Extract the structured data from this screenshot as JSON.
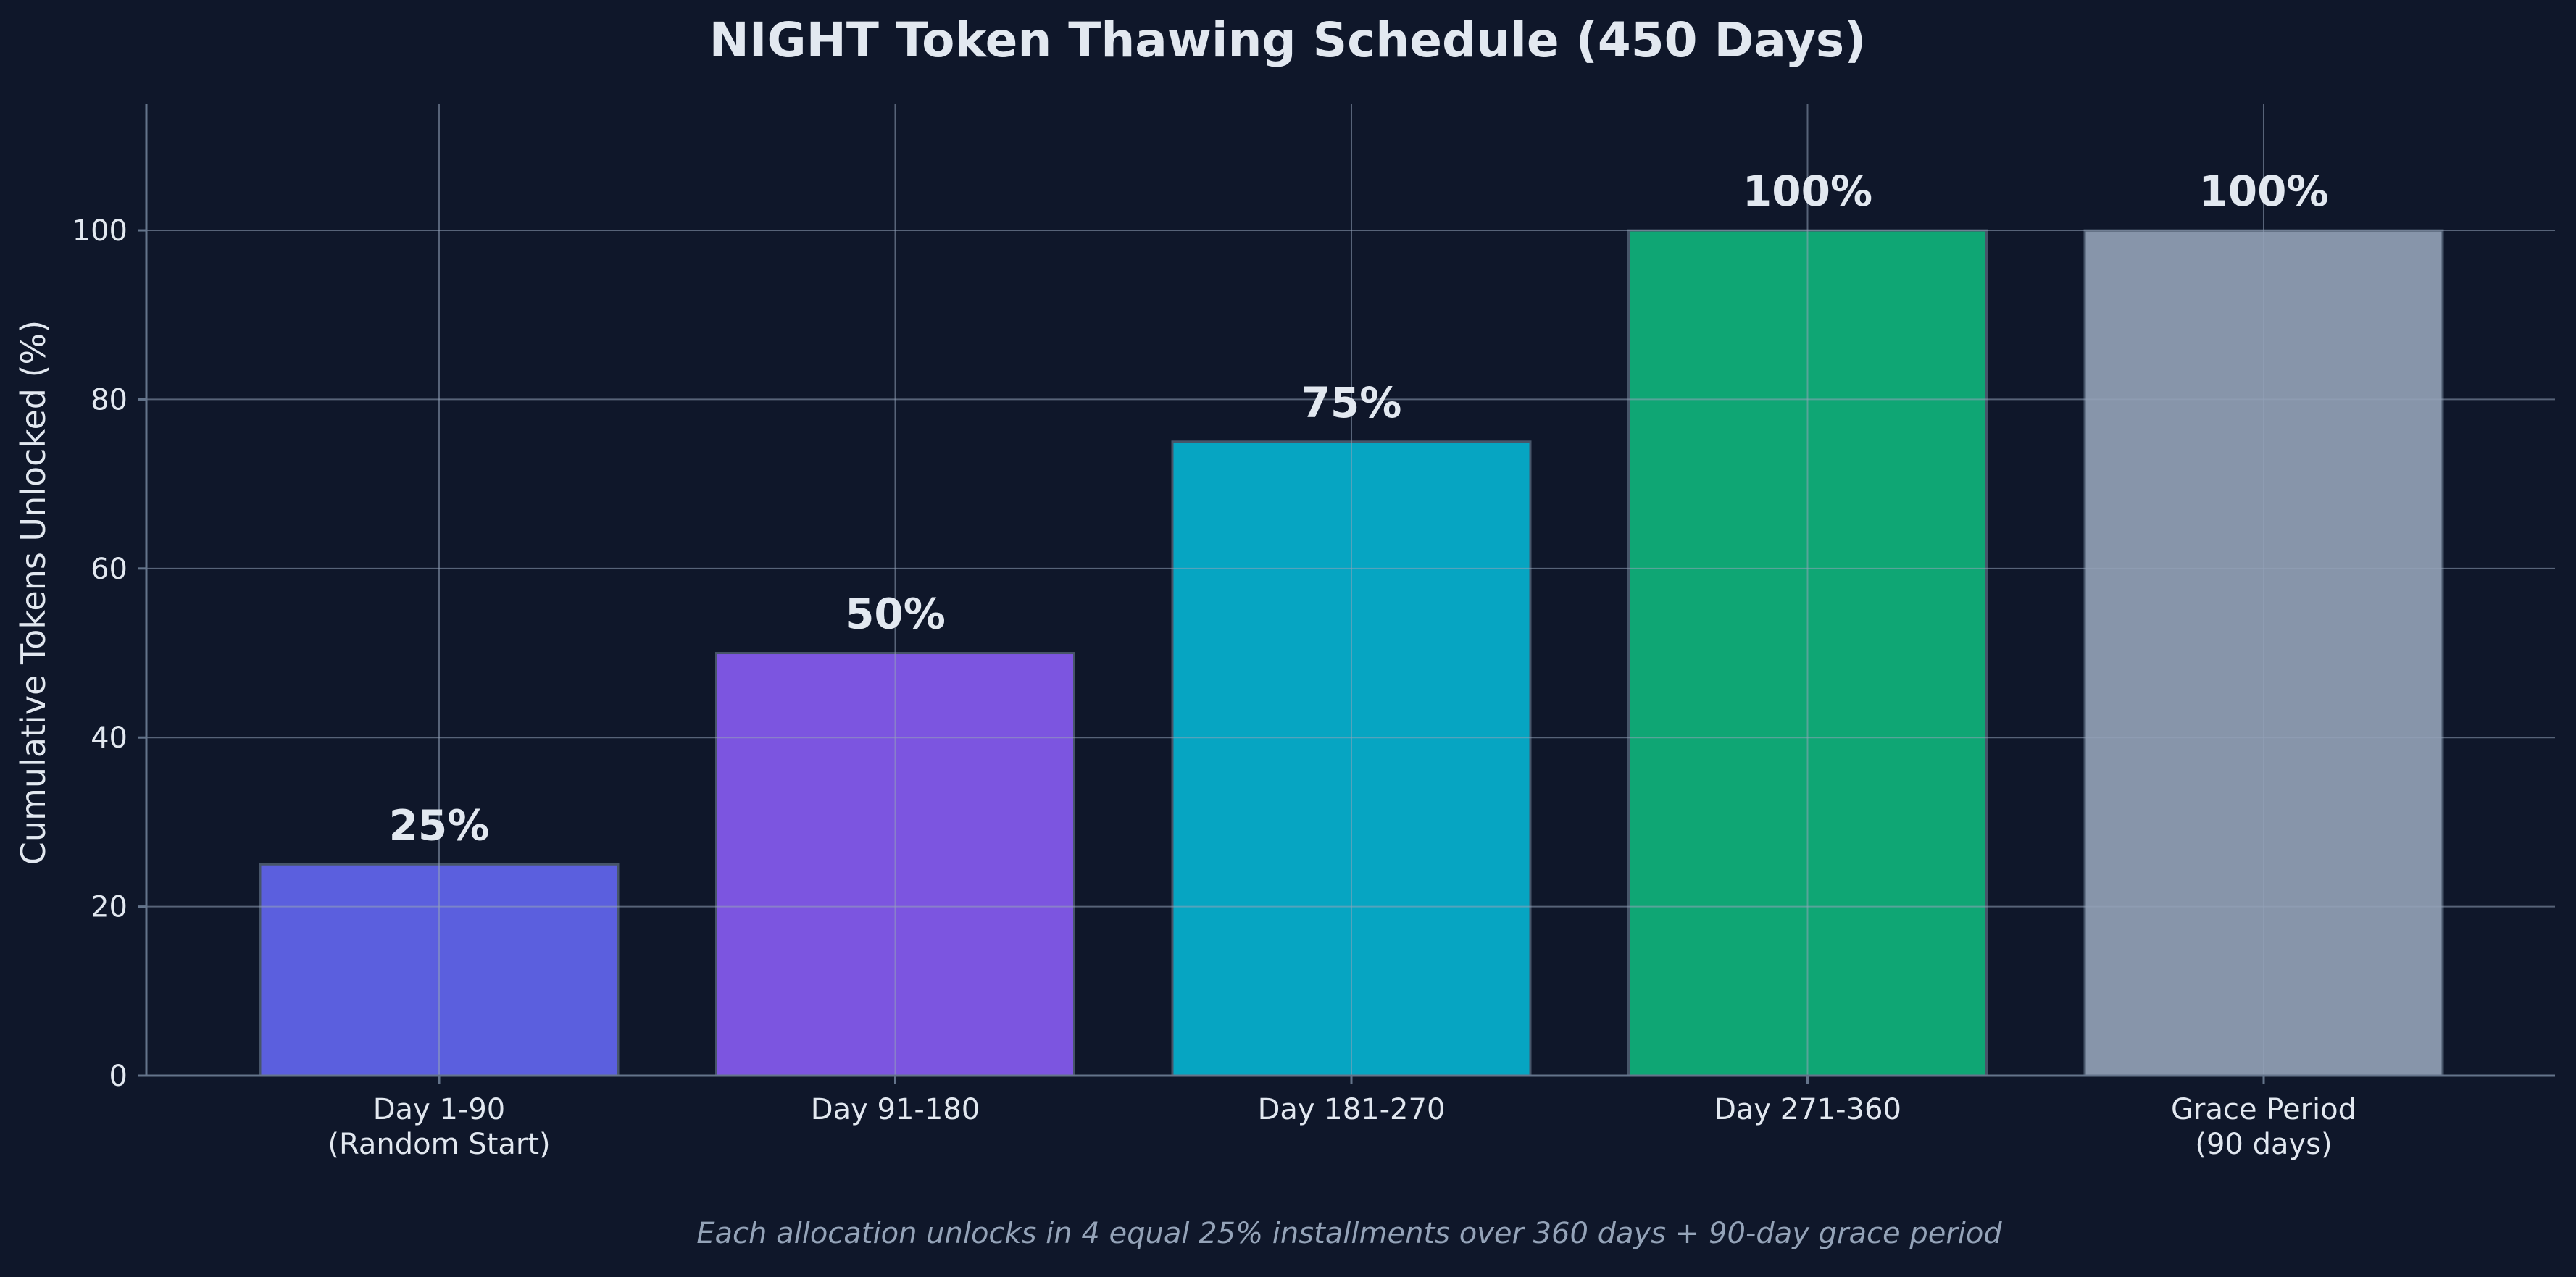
{
  "colors": {
    "background": "#0f172a",
    "text": "#e2e8f0",
    "grid": "#94a3b8",
    "axis": "#64748b",
    "note": "#94a3b8"
  },
  "chart_data": {
    "type": "bar",
    "title": "NIGHT Token Thawing Schedule (450 Days)",
    "xlabel": "",
    "ylabel": "Cumulative Tokens Unlocked (%)",
    "ylim": [
      0,
      115
    ],
    "yticks": [
      0,
      20,
      40,
      60,
      80,
      100
    ],
    "grid": true,
    "categories": [
      "Day 1-90\n(Random Start)",
      "Day 91-180",
      "Day 181-270",
      "Day 271-360",
      "Grace Period\n(90 days)"
    ],
    "values": [
      25,
      50,
      75,
      100,
      100
    ],
    "value_labels": [
      "25%",
      "50%",
      "75%",
      "100%",
      "100%"
    ],
    "bar_colors": [
      "#5b5fde",
      "#7c55e0",
      "#06a5c2",
      "#0fa674",
      "#8795aa"
    ],
    "footnote": "Each allocation unlocks in 4 equal 25% installments over 360 days + 90-day grace period"
  }
}
